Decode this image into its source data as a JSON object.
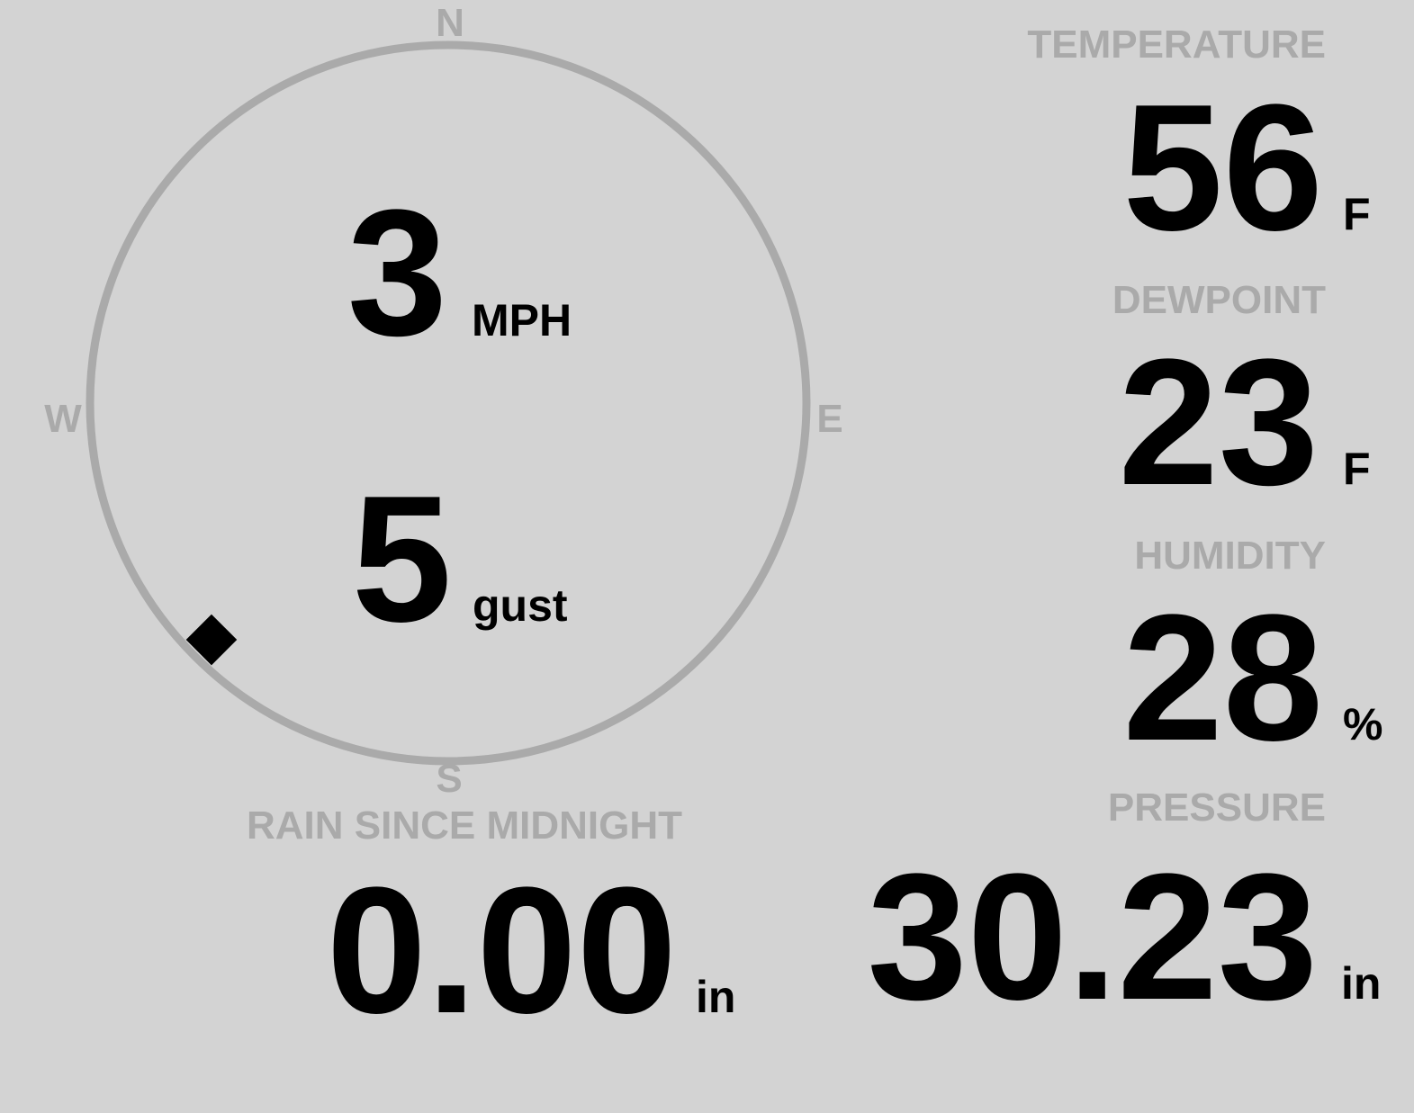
{
  "colors": {
    "background": "#d3d3d3",
    "label": "#aaaaaa",
    "value": "#000000",
    "ring": "#aaaaaa"
  },
  "wind": {
    "compass": {
      "north": "N",
      "south": "S",
      "east": "E",
      "west": "W"
    },
    "direction_degrees": 225,
    "direction_marker_icon": "diamond-icon",
    "speed": "3",
    "speed_unit": "MPH",
    "gust": "5",
    "gust_unit": "gust"
  },
  "temperature": {
    "label": "TEMPERATURE",
    "value": "56",
    "unit": "F"
  },
  "dewpoint": {
    "label": "DEWPOINT",
    "value": "23",
    "unit": "F"
  },
  "humidity": {
    "label": "HUMIDITY",
    "value": "28",
    "unit": "%"
  },
  "rain": {
    "label": "RAIN SINCE MIDNIGHT",
    "value": "0.00",
    "unit": "in"
  },
  "pressure": {
    "label": "PRESSURE",
    "value": "30.23",
    "unit": "in"
  }
}
